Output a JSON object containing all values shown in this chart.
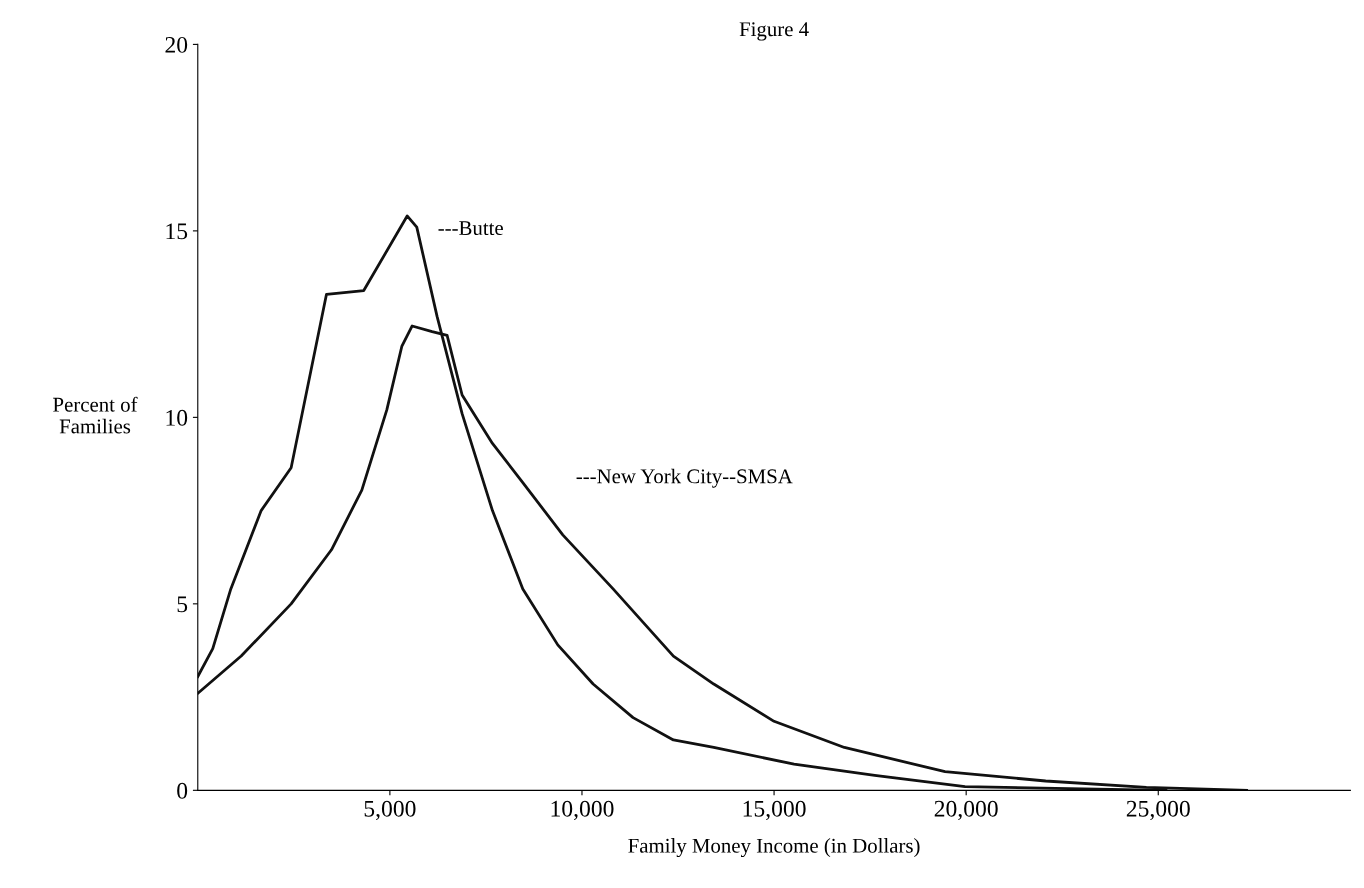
{
  "chart_data": {
    "type": "line",
    "title": "Figure 4",
    "xlabel": "Family Money Income (in Dollars)",
    "ylabel": "Percent of\nFamilies",
    "xlim": [
      0,
      30000
    ],
    "ylim": [
      0,
      20
    ],
    "xticks": [
      {
        "value": 5000,
        "label": "5,000"
      },
      {
        "value": 10000,
        "label": "10,000"
      },
      {
        "value": 15000,
        "label": "15,000"
      },
      {
        "value": 20000,
        "label": "20,000"
      },
      {
        "value": 25000,
        "label": "25,000"
      }
    ],
    "yticks": [
      0,
      5,
      10,
      15,
      20
    ],
    "grid": false,
    "legend": false,
    "marker": "none",
    "line_style": "solid",
    "series": [
      {
        "name": "---Butte",
        "color": "#111111",
        "x": [
          0,
          390,
          860,
          1650,
          2430,
          3350,
          4320,
          5450,
          5700,
          6230,
          6880,
          7670,
          8460,
          9370,
          10290,
          11330,
          12380,
          13430,
          15520,
          17620,
          19970,
          22330,
          25200
        ],
        "values": [
          3.05,
          3.8,
          5.4,
          7.5,
          8.65,
          13.3,
          13.4,
          15.4,
          15.1,
          12.7,
          10.1,
          7.5,
          5.4,
          3.9,
          2.85,
          1.95,
          1.35,
          1.15,
          0.7,
          0.4,
          0.1,
          0.05,
          0
        ]
      },
      {
        "name": "---New York City--SMSA",
        "color": "#111111",
        "x": [
          0,
          1130,
          2430,
          3480,
          4270,
          4920,
          5310,
          5580,
          6100,
          6490,
          6880,
          7670,
          8460,
          9500,
          10810,
          12380,
          13430,
          15000,
          16830,
          19450,
          22070,
          24690,
          27300
        ],
        "values": [
          2.6,
          3.6,
          5.0,
          6.45,
          8.05,
          10.2,
          11.9,
          12.45,
          12.3,
          12.2,
          10.6,
          9.3,
          8.25,
          6.85,
          5.4,
          3.6,
          2.85,
          1.85,
          1.15,
          0.5,
          0.25,
          0.08,
          0
        ]
      }
    ]
  }
}
